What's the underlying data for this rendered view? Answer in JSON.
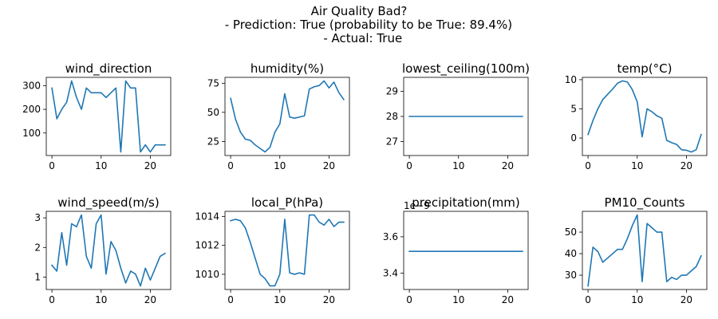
{
  "figure": {
    "suptitle_lines": [
      "Air Quality Bad?",
      "     - Prediction: True (probability to be True: 89.4%)",
      "  - Actual: True"
    ],
    "line_color": "#1f77b4"
  },
  "chart_data": [
    {
      "type": "line",
      "title": "wind_direction",
      "x": [
        0,
        1,
        2,
        3,
        4,
        5,
        6,
        7,
        8,
        9,
        10,
        11,
        12,
        13,
        14,
        15,
        16,
        17,
        18,
        19,
        20,
        21,
        22,
        23
      ],
      "values": [
        290,
        160,
        200,
        230,
        320,
        250,
        200,
        290,
        270,
        270,
        270,
        250,
        270,
        290,
        20,
        320,
        290,
        290,
        20,
        50,
        20,
        50,
        50,
        50
      ],
      "xlim": [
        -1.15,
        24.15
      ],
      "ylim": [
        5,
        335
      ],
      "xticks": [
        0,
        10,
        20
      ],
      "yticks": [
        100,
        200,
        300
      ],
      "ytick_labels": [
        "100",
        "200",
        "300"
      ],
      "offset_text": ""
    },
    {
      "type": "line",
      "title": "humidity(%)",
      "x": [
        0,
        1,
        2,
        3,
        4,
        5,
        6,
        7,
        8,
        9,
        10,
        11,
        12,
        13,
        14,
        15,
        16,
        17,
        18,
        19,
        20,
        21,
        22,
        23
      ],
      "values": [
        62,
        44,
        33,
        27,
        26,
        22,
        19,
        16,
        20,
        33,
        40,
        66,
        46,
        45,
        46,
        47,
        70,
        72,
        73,
        77,
        71,
        76,
        67,
        61
      ],
      "xlim": [
        -1.15,
        24.15
      ],
      "ylim": [
        12.95,
        80.05
      ],
      "xticks": [
        0,
        10,
        20
      ],
      "yticks": [
        25,
        50,
        75
      ],
      "ytick_labels": [
        "25",
        "50",
        "75"
      ],
      "offset_text": ""
    },
    {
      "type": "line",
      "title": "lowest_ceiling(100m)",
      "x": [
        0,
        1,
        2,
        3,
        4,
        5,
        6,
        7,
        8,
        9,
        10,
        11,
        12,
        13,
        14,
        15,
        16,
        17,
        18,
        19,
        20,
        21,
        22,
        23
      ],
      "values": [
        28,
        28,
        28,
        28,
        28,
        28,
        28,
        28,
        28,
        28,
        28,
        28,
        28,
        28,
        28,
        28,
        28,
        28,
        28,
        28,
        28,
        28,
        28,
        28
      ],
      "xlim": [
        -1.15,
        24.15
      ],
      "ylim": [
        26.45,
        29.55
      ],
      "xticks": [
        0,
        10,
        20
      ],
      "yticks": [
        27,
        28,
        29
      ],
      "ytick_labels": [
        "27",
        "28",
        "29"
      ],
      "offset_text": ""
    },
    {
      "type": "line",
      "title": "temp(°C)",
      "x": [
        0,
        1,
        2,
        3,
        4,
        5,
        6,
        7,
        8,
        9,
        10,
        11,
        12,
        13,
        14,
        15,
        16,
        17,
        18,
        19,
        20,
        21,
        22,
        23
      ],
      "values": [
        0.6,
        3.0,
        5.0,
        6.6,
        7.5,
        8.4,
        9.4,
        9.8,
        9.6,
        8.3,
        6.2,
        0.2,
        5.0,
        4.5,
        3.8,
        3.4,
        -0.4,
        -0.8,
        -1.1,
        -2.0,
        -2.1,
        -2.4,
        -2.0,
        0.6
      ],
      "xlim": [
        -1.15,
        24.15
      ],
      "ylim": [
        -3.0,
        10.4
      ],
      "xticks": [
        0,
        10,
        20
      ],
      "yticks": [
        0,
        5,
        10
      ],
      "ytick_labels": [
        "0",
        "5",
        "10"
      ],
      "offset_text": ""
    },
    {
      "type": "line",
      "title": "wind_speed(m/s)",
      "x": [
        0,
        1,
        2,
        3,
        4,
        5,
        6,
        7,
        8,
        9,
        10,
        11,
        12,
        13,
        14,
        15,
        16,
        17,
        18,
        19,
        20,
        21,
        22,
        23
      ],
      "values": [
        1.4,
        1.2,
        2.5,
        1.4,
        2.8,
        2.7,
        3.1,
        1.7,
        1.3,
        2.8,
        3.1,
        1.1,
        2.2,
        1.9,
        1.3,
        0.8,
        1.2,
        1.1,
        0.7,
        1.3,
        0.9,
        1.3,
        1.7,
        1.8
      ],
      "xlim": [
        -1.15,
        24.15
      ],
      "ylim": [
        0.58,
        3.22
      ],
      "xticks": [
        0,
        10,
        20
      ],
      "yticks": [
        1,
        2,
        3
      ],
      "ytick_labels": [
        "1",
        "2",
        "3"
      ],
      "offset_text": ""
    },
    {
      "type": "line",
      "title": "local_P(hPa)",
      "x": [
        0,
        1,
        2,
        3,
        4,
        5,
        6,
        7,
        8,
        9,
        10,
        11,
        12,
        13,
        14,
        15,
        16,
        17,
        18,
        19,
        20,
        21,
        22,
        23
      ],
      "values": [
        1013.7,
        1013.8,
        1013.7,
        1013.2,
        1012.2,
        1011.1,
        1010.0,
        1009.7,
        1009.2,
        1009.2,
        1010.0,
        1013.8,
        1010.1,
        1010.0,
        1010.1,
        1010.0,
        1014.1,
        1014.1,
        1013.6,
        1013.4,
        1013.8,
        1013.3,
        1013.6,
        1013.6
      ],
      "xlim": [
        -1.15,
        24.15
      ],
      "ylim": [
        1008.95,
        1014.35
      ],
      "xticks": [
        0,
        10,
        20
      ],
      "yticks": [
        1010,
        1012,
        1014
      ],
      "ytick_labels": [
        "1010",
        "1012",
        "1014"
      ],
      "offset_text": ""
    },
    {
      "type": "line",
      "title": "precipitation(mm)",
      "x": [
        0,
        1,
        2,
        3,
        4,
        5,
        6,
        7,
        8,
        9,
        10,
        11,
        12,
        13,
        14,
        15,
        16,
        17,
        18,
        19,
        20,
        21,
        22,
        23
      ],
      "values": [
        3.52e-09,
        3.52e-09,
        3.52e-09,
        3.52e-09,
        3.52e-09,
        3.52e-09,
        3.52e-09,
        3.52e-09,
        3.52e-09,
        3.52e-09,
        3.52e-09,
        3.52e-09,
        3.52e-09,
        3.52e-09,
        3.52e-09,
        3.52e-09,
        3.52e-09,
        3.52e-09,
        3.52e-09,
        3.52e-09,
        3.52e-09,
        3.52e-09,
        3.52e-09,
        3.52e-09
      ],
      "xlim": [
        -1.15,
        24.15
      ],
      "ylim": [
        3.31e-09,
        3.74e-09
      ],
      "xticks": [
        0,
        10,
        20
      ],
      "yticks": [
        3.4e-09,
        3.6e-09
      ],
      "ytick_labels": [
        "3.4",
        "3.6"
      ],
      "offset_text": "1e−9"
    },
    {
      "type": "line",
      "title": "PM10_Counts",
      "x": [
        0,
        1,
        2,
        3,
        4,
        5,
        6,
        7,
        8,
        9,
        10,
        11,
        12,
        13,
        14,
        15,
        16,
        17,
        18,
        19,
        20,
        21,
        22,
        23
      ],
      "values": [
        25,
        43,
        41,
        36,
        38,
        40,
        42,
        42,
        47,
        53,
        58,
        27,
        54,
        52,
        50,
        50,
        27,
        29,
        28,
        30,
        30,
        32,
        34,
        39
      ],
      "xlim": [
        -1.15,
        24.15
      ],
      "ylim": [
        23.35,
        59.65
      ],
      "xticks": [
        0,
        10,
        20
      ],
      "yticks": [
        30,
        40,
        50
      ],
      "ytick_labels": [
        "30",
        "40",
        "50"
      ],
      "offset_text": ""
    }
  ]
}
